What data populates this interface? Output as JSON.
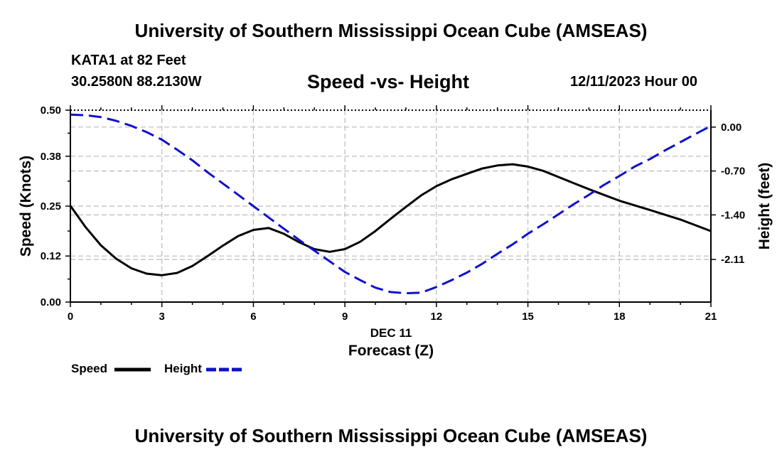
{
  "header": {
    "org_title": "University of Southern Mississippi Ocean Cube (AMSEAS)",
    "station": "KATA1 at 82 Feet",
    "coords": "30.2580N  88.2130W",
    "chart_title": "Speed -vs- Height",
    "datetime": "12/11/2023 Hour 00"
  },
  "footer": {
    "org_title": "University of Southern Mississippi Ocean Cube (AMSEAS)"
  },
  "legend": {
    "speed_label": "Speed",
    "height_label": "Height"
  },
  "colors": {
    "speed": "#000000",
    "height": "#1010cc",
    "grid": "#bbbbbb"
  },
  "chart_data": {
    "type": "line",
    "title": "Speed -vs- Height",
    "xlabel": "Forecast (Z)",
    "xlabel_date": "DEC 11",
    "ylabel": "Speed (Knots)",
    "y2label": "Height (feet)",
    "xlim": [
      0,
      21
    ],
    "ylim": [
      0,
      0.5
    ],
    "y2lim": [
      -2.79,
      0.27
    ],
    "x_ticks": [
      0,
      3,
      6,
      9,
      12,
      15,
      18,
      21
    ],
    "y_ticks": [
      0.0,
      0.12,
      0.25,
      0.38,
      0.5
    ],
    "y_tick_labels": [
      "0.00",
      "0.12",
      "0.25",
      "0.38",
      "0.50"
    ],
    "y2_ticks": [
      0.0,
      -0.7,
      -1.4,
      -2.11
    ],
    "y2_tick_labels": [
      "0.00",
      "-0.70",
      "-1.40",
      "-2.11"
    ],
    "grid": true,
    "series": [
      {
        "name": "Speed",
        "axis": "left",
        "style": "solid",
        "x": [
          0,
          0.5,
          1,
          1.5,
          2,
          2.5,
          3,
          3.5,
          4,
          4.5,
          5,
          5.5,
          6,
          6.5,
          7,
          7.5,
          8,
          8.5,
          9,
          9.5,
          10,
          10.5,
          11,
          11.5,
          12,
          12.5,
          13,
          13.5,
          14,
          14.5,
          15,
          15.5,
          16,
          16.5,
          17,
          17.5,
          18,
          19,
          20,
          21
        ],
        "values": [
          0.251,
          0.195,
          0.148,
          0.113,
          0.088,
          0.074,
          0.07,
          0.076,
          0.094,
          0.12,
          0.147,
          0.172,
          0.188,
          0.193,
          0.178,
          0.156,
          0.138,
          0.131,
          0.138,
          0.157,
          0.185,
          0.217,
          0.248,
          0.278,
          0.302,
          0.32,
          0.334,
          0.348,
          0.356,
          0.359,
          0.353,
          0.342,
          0.326,
          0.31,
          0.294,
          0.279,
          0.264,
          0.24,
          0.215,
          0.185
        ]
      },
      {
        "name": "Height",
        "axis": "right",
        "style": "dashed",
        "x": [
          0,
          0.5,
          1,
          1.5,
          2,
          2.5,
          3,
          3.5,
          4,
          4.5,
          5,
          5.5,
          6,
          6.5,
          7,
          7.5,
          8,
          8.5,
          9,
          9.5,
          10,
          10.5,
          11,
          11.5,
          12,
          12.5,
          13,
          13.5,
          14,
          14.5,
          15,
          15.5,
          16,
          16.5,
          17,
          17.5,
          18,
          18.5,
          19,
          19.5,
          20,
          20.5,
          21
        ],
        "values": [
          0.2,
          0.19,
          0.16,
          0.1,
          0.02,
          -0.08,
          -0.2,
          -0.36,
          -0.53,
          -0.72,
          -0.9,
          -1.08,
          -1.26,
          -1.44,
          -1.62,
          -1.8,
          -1.97,
          -2.14,
          -2.31,
          -2.44,
          -2.56,
          -2.63,
          -2.65,
          -2.64,
          -2.55,
          -2.44,
          -2.32,
          -2.18,
          -2.02,
          -1.87,
          -1.7,
          -1.55,
          -1.39,
          -1.23,
          -1.08,
          -0.92,
          -0.78,
          -0.63,
          -0.51,
          -0.37,
          -0.24,
          -0.11,
          0.02
        ]
      }
    ]
  }
}
